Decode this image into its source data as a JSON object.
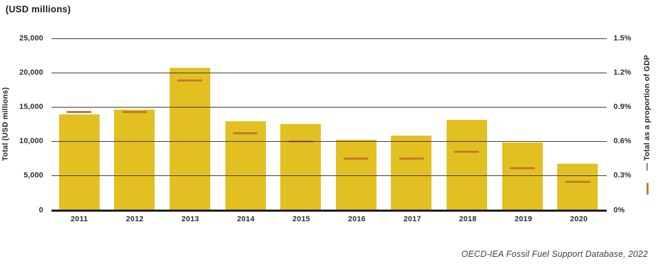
{
  "title": "(USD millions)",
  "left_axis": {
    "label": "Total (USD millions)",
    "ticks": [
      "25,000",
      "20,000",
      "15,000",
      "10,000",
      "5,000",
      "0"
    ]
  },
  "right_axis": {
    "label": "— Total as a proportion of GDP",
    "ticks": [
      "1.5%",
      "1.2%",
      "0.9%",
      "0.6%",
      "0.3%",
      "0%"
    ]
  },
  "footer": "OECD-IEA Fossil Fuel Support Database, 2022",
  "colors": {
    "bar": "#e2c021",
    "marker": "#c47a2e",
    "gridline": "#3a3a3a",
    "baseline": "#1a1a1a",
    "text": "#2b2b2b"
  },
  "chart_data": {
    "type": "bar",
    "categories": [
      "2011",
      "2012",
      "2013",
      "2014",
      "2015",
      "2016",
      "2017",
      "2018",
      "2019",
      "2020"
    ],
    "series": [
      {
        "name": "Total (USD millions)",
        "axis": "left",
        "style": "bar",
        "values": [
          13900,
          14600,
          20700,
          13000,
          12600,
          10300,
          10900,
          13200,
          9900,
          6800
        ]
      },
      {
        "name": "Total as a proportion of GDP",
        "axis": "right",
        "style": "dash-marker",
        "values": [
          0.86,
          0.86,
          1.13,
          0.67,
          0.6,
          0.45,
          0.45,
          0.51,
          0.37,
          0.25
        ]
      }
    ],
    "title": "(USD millions)",
    "xlabel": "",
    "ylabel_left": "Total (USD millions)",
    "ylabel_right": "Total as a proportion of GDP",
    "ylim_left": [
      0,
      25000
    ],
    "ylim_right": [
      0,
      1.5
    ],
    "grid": true,
    "legend_position": "right-vertical",
    "source": "OECD-IEA Fossil Fuel Support Database, 2022"
  }
}
